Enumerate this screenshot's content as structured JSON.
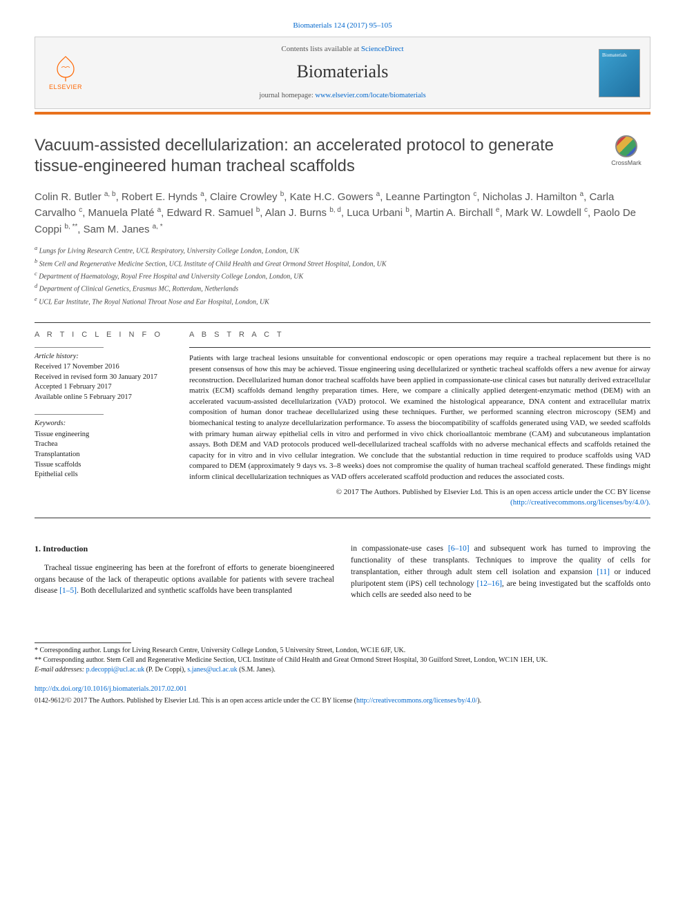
{
  "top_citation_prefix": "Biomaterials 124 (2017) 95–105",
  "top_citation_link_text": "Biomaterials 124 (2017) 95–105",
  "header": {
    "contents_prefix": "Contents lists available at ",
    "contents_link": "ScienceDirect",
    "journal_name": "Biomaterials",
    "homepage_prefix": "journal homepage: ",
    "homepage_url": "www.elsevier.com/locate/biomaterials",
    "elsevier_label": "ELSEVIER",
    "thumb_label": "Biomaterials"
  },
  "article": {
    "title": "Vacuum-assisted decellularization: an accelerated protocol to generate tissue-engineered human tracheal scaffolds",
    "crossmark_label": "CrossMark"
  },
  "authors_html": "Colin R. Butler <sup>a, b</sup>, Robert E. Hynds <sup>a</sup>, Claire Crowley <sup>b</sup>, Kate H.C. Gowers <sup>a</sup>, Leanne Partington <sup>c</sup>, Nicholas J. Hamilton <sup>a</sup>, Carla Carvalho <sup>c</sup>, Manuela Platé <sup>a</sup>, Edward R. Samuel <sup>b</sup>, Alan J. Burns <sup>b, d</sup>, Luca Urbani <sup>b</sup>, Martin A. Birchall <sup>e</sup>, Mark W. Lowdell <sup>c</sup>, Paolo De Coppi <sup>b, **</sup>, Sam M. Janes <sup>a, *</sup>",
  "affiliations": {
    "a": "Lungs for Living Research Centre, UCL Respiratory, University College London, London, UK",
    "b": "Stem Cell and Regenerative Medicine Section, UCL Institute of Child Health and Great Ormond Street Hospital, London, UK",
    "c": "Department of Haematology, Royal Free Hospital and University College London, London, UK",
    "d": "Department of Clinical Genetics, Erasmus MC, Rotterdam, Netherlands",
    "e": "UCL Ear Institute, The Royal National Throat Nose and Ear Hospital, London, UK"
  },
  "article_info": {
    "label": "A R T I C L E   I N F O",
    "history_label": "Article history:",
    "received": "Received 17 November 2016",
    "revised": "Received in revised form 30 January 2017",
    "accepted": "Accepted 1 February 2017",
    "online": "Available online 5 February 2017",
    "keywords_label": "Keywords:",
    "keywords": [
      "Tissue engineering",
      "Trachea",
      "Transplantation",
      "Tissue scaffolds",
      "Epithelial cells"
    ]
  },
  "abstract": {
    "label": "A B S T R A C T",
    "text": "Patients with large tracheal lesions unsuitable for conventional endoscopic or open operations may require a tracheal replacement but there is no present consensus of how this may be achieved. Tissue engineering using decellularized or synthetic tracheal scaffolds offers a new avenue for airway reconstruction. Decellularized human donor tracheal scaffolds have been applied in compassionate-use clinical cases but naturally derived extracellular matrix (ECM) scaffolds demand lengthy preparation times. Here, we compare a clinically applied detergent-enzymatic method (DEM) with an accelerated vacuum-assisted decellularization (VAD) protocol. We examined the histological appearance, DNA content and extracellular matrix composition of human donor tracheae decellularized using these techniques. Further, we performed scanning electron microscopy (SEM) and biomechanical testing to analyze decellularization performance. To assess the biocompatibility of scaffolds generated using VAD, we seeded scaffolds with primary human airway epithelial cells in vitro and performed in vivo chick chorioallantoic membrane (CAM) and subcutaneous implantation assays. Both DEM and VAD protocols produced well-decellularized tracheal scaffolds with no adverse mechanical effects and scaffolds retained the capacity for in vitro and in vivo cellular integration. We conclude that the substantial reduction in time required to produce scaffolds using VAD compared to DEM (approximately 9 days vs. 3–8 weeks) does not compromise the quality of human tracheal scaffold generated. These findings might inform clinical decellularization techniques as VAD offers accelerated scaffold production and reduces the associated costs.",
    "copyright": "© 2017 The Authors. Published by Elsevier Ltd. This is an open access article under the CC BY license",
    "license_url": "(http://creativecommons.org/licenses/by/4.0/)."
  },
  "introduction": {
    "heading": "1. Introduction",
    "col1": "Tracheal tissue engineering has been at the forefront of efforts to generate bioengineered organs because of the lack of therapeutic options available for patients with severe tracheal disease [1–5]. Both decellularized and synthetic scaffolds have been transplanted",
    "col2": "in compassionate-use cases [6–10] and subsequent work has turned to improving the functionality of these transplants. Techniques to improve the quality of cells for transplantation, either through adult stem cell isolation and expansion [11] or induced pluripotent stem (iPS) cell technology [12–16], are being investigated but the scaffolds onto which cells are seeded also need to be",
    "ref_1_5": "[1–5]",
    "ref_6_10": "[6–10]",
    "ref_11": "[11]",
    "ref_12_16": "[12–16]"
  },
  "footer": {
    "corr1": "* Corresponding author. Lungs for Living Research Centre, University College London, 5 University Street, London, WC1E 6JF, UK.",
    "corr2": "** Corresponding author. Stem Cell and Regenerative Medicine Section, UCL Institute of Child Health and Great Ormond Street Hospital, 30 Guilford Street, London, WC1N 1EH, UK.",
    "email_label": "E-mail addresses:",
    "email1": "p.decoppi@ucl.ac.uk",
    "email1_name": "(P. De Coppi),",
    "email2": "s.janes@ucl.ac.uk",
    "email2_name": "(S.M. Janes).",
    "doi": "http://dx.doi.org/10.1016/j.biomaterials.2017.02.001",
    "issn_line": "0142-9612/© 2017 The Authors. Published by Elsevier Ltd. This is an open access article under the CC BY license (",
    "issn_license": "http://creativecommons.org/licenses/by/4.0/",
    "issn_close": ")."
  },
  "colors": {
    "link": "#0066cc",
    "orange_bar": "#e8711c",
    "elsevier_orange": "#ff6600",
    "title_gray": "#444444",
    "muted": "#555555"
  }
}
